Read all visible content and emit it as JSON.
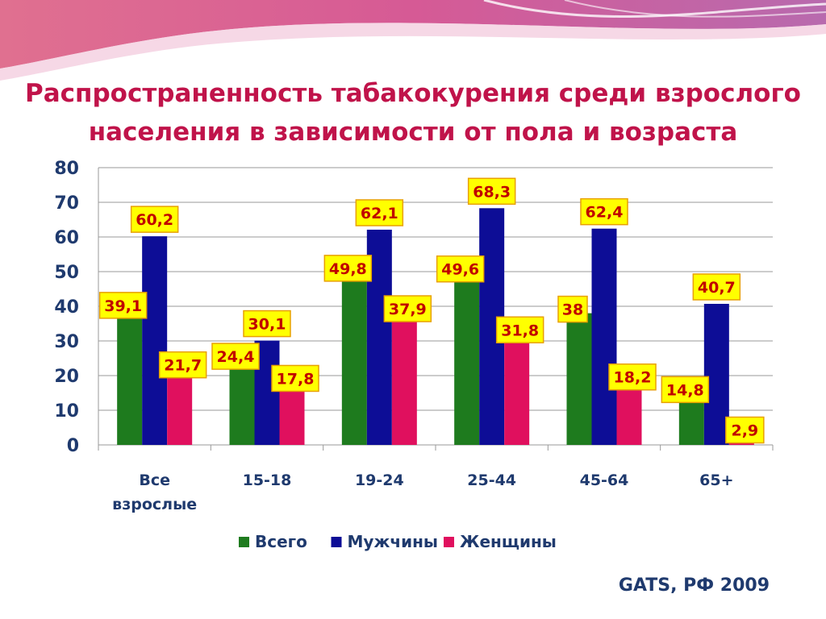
{
  "slide": {
    "title_line1": "Распространенность табакокурения среди взрослого",
    "title_line2": "населения в зависимости от пола и возраста",
    "source": "GATS, РФ 2009"
  },
  "colors": {
    "title": "#C0134A",
    "series": [
      "#1E7B1E",
      "#0D0D96",
      "#E0105E"
    ],
    "label_bg": "#FFFF00",
    "label_border": "#E8A000",
    "label_text": "#C00000",
    "axis_text": "#1F3A6E"
  },
  "chart_data": {
    "type": "bar",
    "categories": [
      "Все взрослые",
      "15-18",
      "19-24",
      "25-44",
      "45-64",
      "65+"
    ],
    "series": [
      {
        "name": "Всего",
        "values": [
          39.1,
          24.4,
          49.8,
          49.6,
          38,
          14.8
        ]
      },
      {
        "name": "Мужчины",
        "values": [
          60.2,
          30.1,
          62.1,
          68.3,
          62.4,
          40.7
        ]
      },
      {
        "name": "Женщины",
        "values": [
          21.7,
          17.8,
          37.9,
          31.8,
          18.2,
          2.9
        ]
      }
    ],
    "data_labels": [
      [
        "39,1",
        "24,4",
        "49,8",
        "49,6",
        "38",
        "14,8"
      ],
      [
        "60,2",
        "30,1",
        "62,1",
        "68,3",
        "62,4",
        "40,7"
      ],
      [
        "21,7",
        "17,8",
        "37,9",
        "31,8",
        "18,2",
        "2,9"
      ]
    ],
    "yticks": [
      "0",
      "10",
      "20",
      "30",
      "40",
      "50",
      "60",
      "70",
      "80"
    ],
    "ylim": [
      0,
      80
    ],
    "grid": true,
    "legend": "bottom"
  }
}
